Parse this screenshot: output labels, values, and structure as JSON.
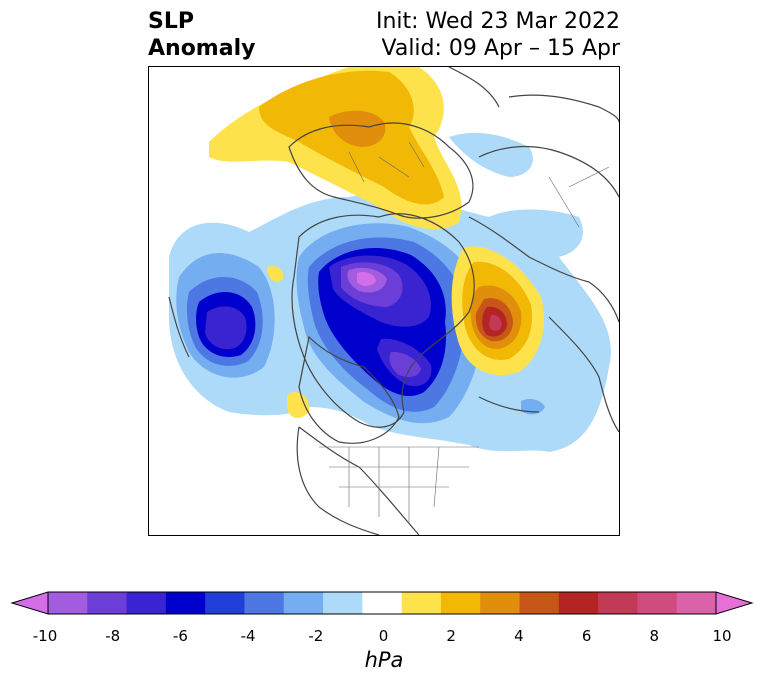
{
  "title": {
    "left_line1": "SLP",
    "left_line2": "Anomaly",
    "right_line1": "Init: Wed 23 Mar 2022",
    "right_line2": "Valid: 09 Apr – 15 Apr"
  },
  "colorbar": {
    "unit": "hPa",
    "ticks": [
      "-10",
      "-8",
      "-6",
      "-4",
      "-2",
      "0",
      "2",
      "4",
      "6",
      "8",
      "10"
    ],
    "colors": [
      "#d66de8",
      "#a25ce0",
      "#6b3ed8",
      "#3a23d0",
      "#0000cc",
      "#1f3fd8",
      "#4d78e4",
      "#75aef0",
      "#aedaf9",
      "#ffffff",
      "#fde24c",
      "#f2b806",
      "#e08e0b",
      "#c75716",
      "#b52424",
      "#c23a55",
      "#d04b7e",
      "#da62a8",
      "#e66fd8"
    ]
  },
  "map": {
    "projection": "polar-stereographic",
    "field": "SLP anomaly"
  }
}
